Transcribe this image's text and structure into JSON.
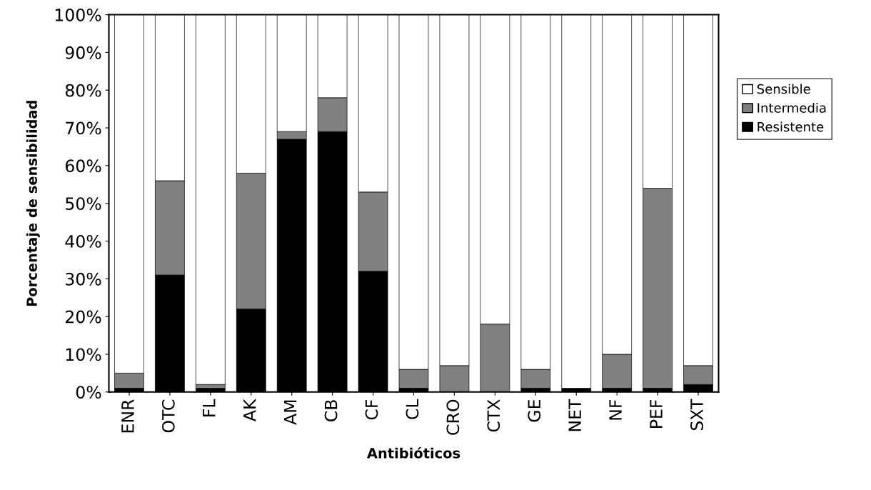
{
  "chart_data": {
    "type": "bar",
    "stacked": true,
    "xlabel": "Antibióticos",
    "ylabel": "Porcentaje de sensibilidad",
    "categories": [
      "ENR",
      "OTC",
      "FL",
      "AK",
      "AM",
      "CB",
      "CF",
      "CL",
      "CRO",
      "CTX",
      "GE",
      "NET",
      "NF",
      "PEF",
      "SXT"
    ],
    "series": [
      {
        "name": "Resistente",
        "color": "#000000",
        "values": [
          1,
          31,
          1,
          22,
          67,
          69,
          32,
          1,
          0,
          0,
          1,
          1,
          1,
          1,
          2
        ]
      },
      {
        "name": "Intermedia",
        "color": "#808080",
        "values": [
          4,
          25,
          1,
          36,
          2,
          9,
          21,
          5,
          7,
          18,
          5,
          0,
          9,
          53,
          5
        ]
      },
      {
        "name": "Sensible",
        "color": "#ffffff",
        "values": [
          95,
          44,
          98,
          42,
          31,
          22,
          47,
          94,
          93,
          82,
          94,
          99,
          90,
          46,
          93
        ]
      }
    ],
    "ylim": [
      0,
      100
    ],
    "yticks": [
      {
        "value": 0,
        "label": "0%"
      },
      {
        "value": 10,
        "label": "10%"
      },
      {
        "value": 20,
        "label": "20%"
      },
      {
        "value": 30,
        "label": "30%"
      },
      {
        "value": 40,
        "label": "40%"
      },
      {
        "value": 50,
        "label": "50%"
      },
      {
        "value": 60,
        "label": "60%"
      },
      {
        "value": 70,
        "label": "70%"
      },
      {
        "value": 80,
        "label": "80%"
      },
      {
        "value": 90,
        "label": "90%"
      },
      {
        "value": 100,
        "label": "100%"
      }
    ],
    "grid": false,
    "legend": "right"
  }
}
